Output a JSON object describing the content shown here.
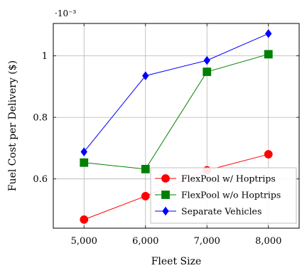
{
  "chart_data": {
    "type": "line",
    "xlabel": "Fleet Size",
    "ylabel": "Fuel Cost per Delivery ($)",
    "y_scale_note": "·10⁻³",
    "x": [
      5000,
      6000,
      7000,
      8000
    ],
    "x_tick_labels": [
      "5,000",
      "6,000",
      "7,000",
      "8,000"
    ],
    "y_ticks": [
      0.6,
      0.8,
      1.0
    ],
    "y_tick_labels": [
      "0.6",
      "0.8",
      "1"
    ],
    "xlim": [
      4500,
      8500
    ],
    "ylim": [
      0.44,
      1.105
    ],
    "grid": true,
    "legend_position": "bottom-right",
    "series": [
      {
        "name": "FlexPool w/ Hoptrips",
        "color": "#ff0000",
        "marker": "circle",
        "values": [
          0.468,
          0.544,
          0.628,
          0.68
        ]
      },
      {
        "name": "FlexPool w/o Hoptrips",
        "color": "#008000",
        "marker": "square",
        "values": [
          0.653,
          0.632,
          0.948,
          1.005
        ]
      },
      {
        "name": "Separate Vehicles",
        "color": "#0000ff",
        "marker": "diamond",
        "values": [
          0.688,
          0.935,
          0.985,
          1.072
        ]
      }
    ]
  }
}
